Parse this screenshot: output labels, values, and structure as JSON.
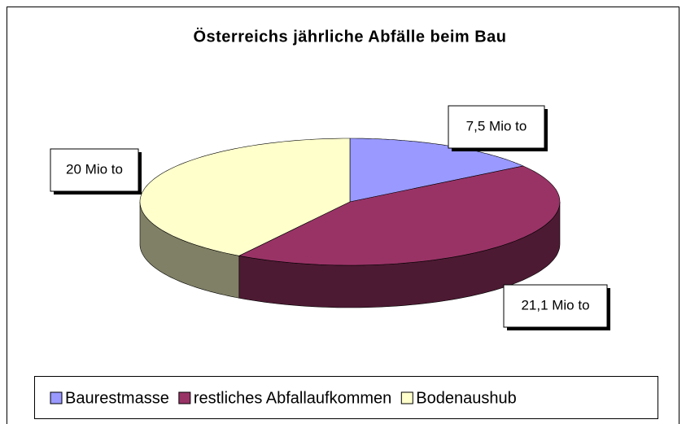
{
  "chart_data": {
    "type": "pie3d",
    "title": "Österreichs jährliche Abfälle beim Bau",
    "categories": [
      "Baurestmasse",
      "restliches Abfallaufkommen",
      "Bodenaushub"
    ],
    "values": [
      7.5,
      21.1,
      20
    ],
    "value_labels": [
      "7,5 Mio to",
      "21,1 Mio to",
      "20 Mio to"
    ],
    "colors": [
      "#9999ff",
      "#993366",
      "#ffffcc"
    ],
    "side_colors": [
      "#4d4d80",
      "#4d1a33",
      "#808066"
    ],
    "legend": "bottom"
  }
}
